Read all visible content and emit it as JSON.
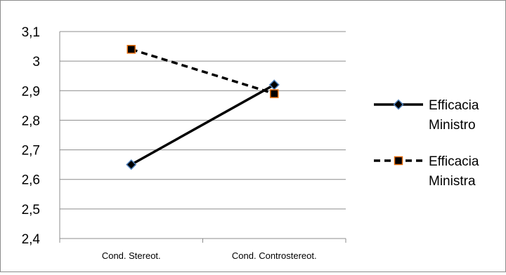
{
  "chart_data": {
    "type": "line",
    "categories": [
      "Cond. Stereot.",
      "Cond. Controstereot."
    ],
    "ylim": [
      2.4,
      3.1
    ],
    "yticks": [
      "2,4",
      "2,5",
      "2,6",
      "2,7",
      "2,8",
      "2,9",
      "3",
      "3,1"
    ],
    "grid": "horizontal",
    "legend_position": "right",
    "series": [
      {
        "name": "Efficacia Ministro",
        "name_lines": [
          "Efficacia",
          "Ministro"
        ],
        "values": [
          2.65,
          2.92
        ],
        "line_style": "solid",
        "marker": "diamond",
        "line_color": "#000000",
        "marker_fill": "#000000",
        "marker_edge": "#4f81bd"
      },
      {
        "name": "Efficacia Ministra",
        "name_lines": [
          "Efficacia",
          "Ministra"
        ],
        "values": [
          3.04,
          2.89
        ],
        "line_style": "dashed",
        "marker": "square",
        "line_color": "#000000",
        "marker_fill": "#000000",
        "marker_edge": "#e46c0a"
      }
    ]
  }
}
